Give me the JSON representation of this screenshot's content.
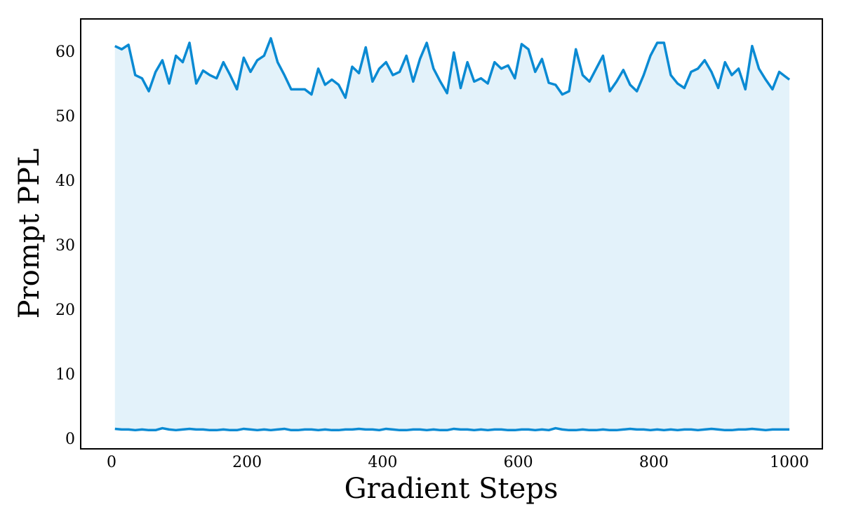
{
  "chart_data": {
    "type": "line",
    "x_label": "Gradient Steps",
    "y_label": "Prompt PPL",
    "x": [
      5,
      15,
      25,
      35,
      45,
      55,
      65,
      75,
      85,
      95,
      105,
      115,
      125,
      135,
      145,
      155,
      165,
      175,
      185,
      195,
      205,
      215,
      225,
      235,
      245,
      255,
      265,
      275,
      285,
      295,
      305,
      315,
      325,
      335,
      345,
      355,
      365,
      375,
      385,
      395,
      405,
      415,
      425,
      435,
      445,
      455,
      465,
      475,
      485,
      495,
      505,
      515,
      525,
      535,
      545,
      555,
      565,
      575,
      585,
      595,
      605,
      615,
      625,
      635,
      645,
      655,
      665,
      675,
      685,
      695,
      705,
      715,
      725,
      735,
      745,
      755,
      765,
      775,
      785,
      795,
      805,
      815,
      825,
      835,
      845,
      855,
      865,
      875,
      885,
      895,
      905,
      915,
      925,
      935,
      945,
      955,
      965,
      975,
      985,
      995,
      1000
    ],
    "series": [
      {
        "color": "#0a8ad3",
        "values": [
          61,
          60.5,
          61.2,
          56.5,
          56,
          54,
          57,
          58.8,
          55.2,
          59.5,
          58.5,
          61.5,
          55.2,
          57.2,
          56.5,
          56,
          58.5,
          56.5,
          54.3,
          59.2,
          57,
          58.8,
          59.5,
          62.2,
          58.5,
          56.5,
          54.3,
          54.3,
          54.3,
          53.5,
          57.5,
          55,
          55.8,
          55,
          53,
          57.8,
          56.8,
          60.8,
          55.5,
          57.5,
          58.5,
          56.5,
          57,
          59.5,
          55.5,
          59,
          61.5,
          57.5,
          55.5,
          53.7,
          60,
          54.5,
          58.5,
          55.5,
          56,
          55.2,
          58.5,
          57.5,
          58,
          56,
          61.3,
          60.5,
          57,
          59,
          55.3,
          55,
          53.5,
          54,
          60.5,
          56.5,
          55.5,
          57.5,
          59.5,
          54,
          55.5,
          57.3,
          55,
          54,
          56.5,
          59.5,
          61.5,
          61.5,
          56.5,
          55.2,
          54.5,
          57,
          57.5,
          58.8,
          57,
          54.5,
          58.5,
          56.5,
          57.5,
          54.3,
          61,
          57.5,
          55.8,
          54.3,
          57,
          56.2,
          55.8
        ]
      },
      {
        "color": "#0a8ad3",
        "values": [
          1.7,
          1.6,
          1.6,
          1.5,
          1.6,
          1.5,
          1.5,
          1.8,
          1.6,
          1.5,
          1.6,
          1.7,
          1.6,
          1.6,
          1.5,
          1.5,
          1.6,
          1.5,
          1.5,
          1.7,
          1.6,
          1.5,
          1.6,
          1.5,
          1.6,
          1.7,
          1.5,
          1.5,
          1.6,
          1.6,
          1.5,
          1.6,
          1.5,
          1.5,
          1.6,
          1.6,
          1.7,
          1.6,
          1.6,
          1.5,
          1.7,
          1.6,
          1.5,
          1.5,
          1.6,
          1.6,
          1.5,
          1.6,
          1.5,
          1.5,
          1.7,
          1.6,
          1.6,
          1.5,
          1.6,
          1.5,
          1.6,
          1.6,
          1.5,
          1.5,
          1.6,
          1.6,
          1.5,
          1.6,
          1.5,
          1.8,
          1.6,
          1.5,
          1.5,
          1.6,
          1.5,
          1.5,
          1.6,
          1.5,
          1.5,
          1.6,
          1.7,
          1.6,
          1.6,
          1.5,
          1.6,
          1.5,
          1.6,
          1.5,
          1.6,
          1.6,
          1.5,
          1.6,
          1.7,
          1.6,
          1.5,
          1.5,
          1.6,
          1.6,
          1.7,
          1.6,
          1.5,
          1.6,
          1.6,
          1.6,
          1.6
        ]
      }
    ],
    "fill_between": "#e3f2fa",
    "xlim": [
      -45.5,
      1048.6
    ],
    "xticks": [
      0,
      200,
      400,
      600,
      800,
      1000
    ],
    "ylim": [
      -1.4,
      65.2
    ],
    "yticks": [
      0,
      10,
      20,
      30,
      40,
      50,
      60
    ],
    "grid": false
  }
}
